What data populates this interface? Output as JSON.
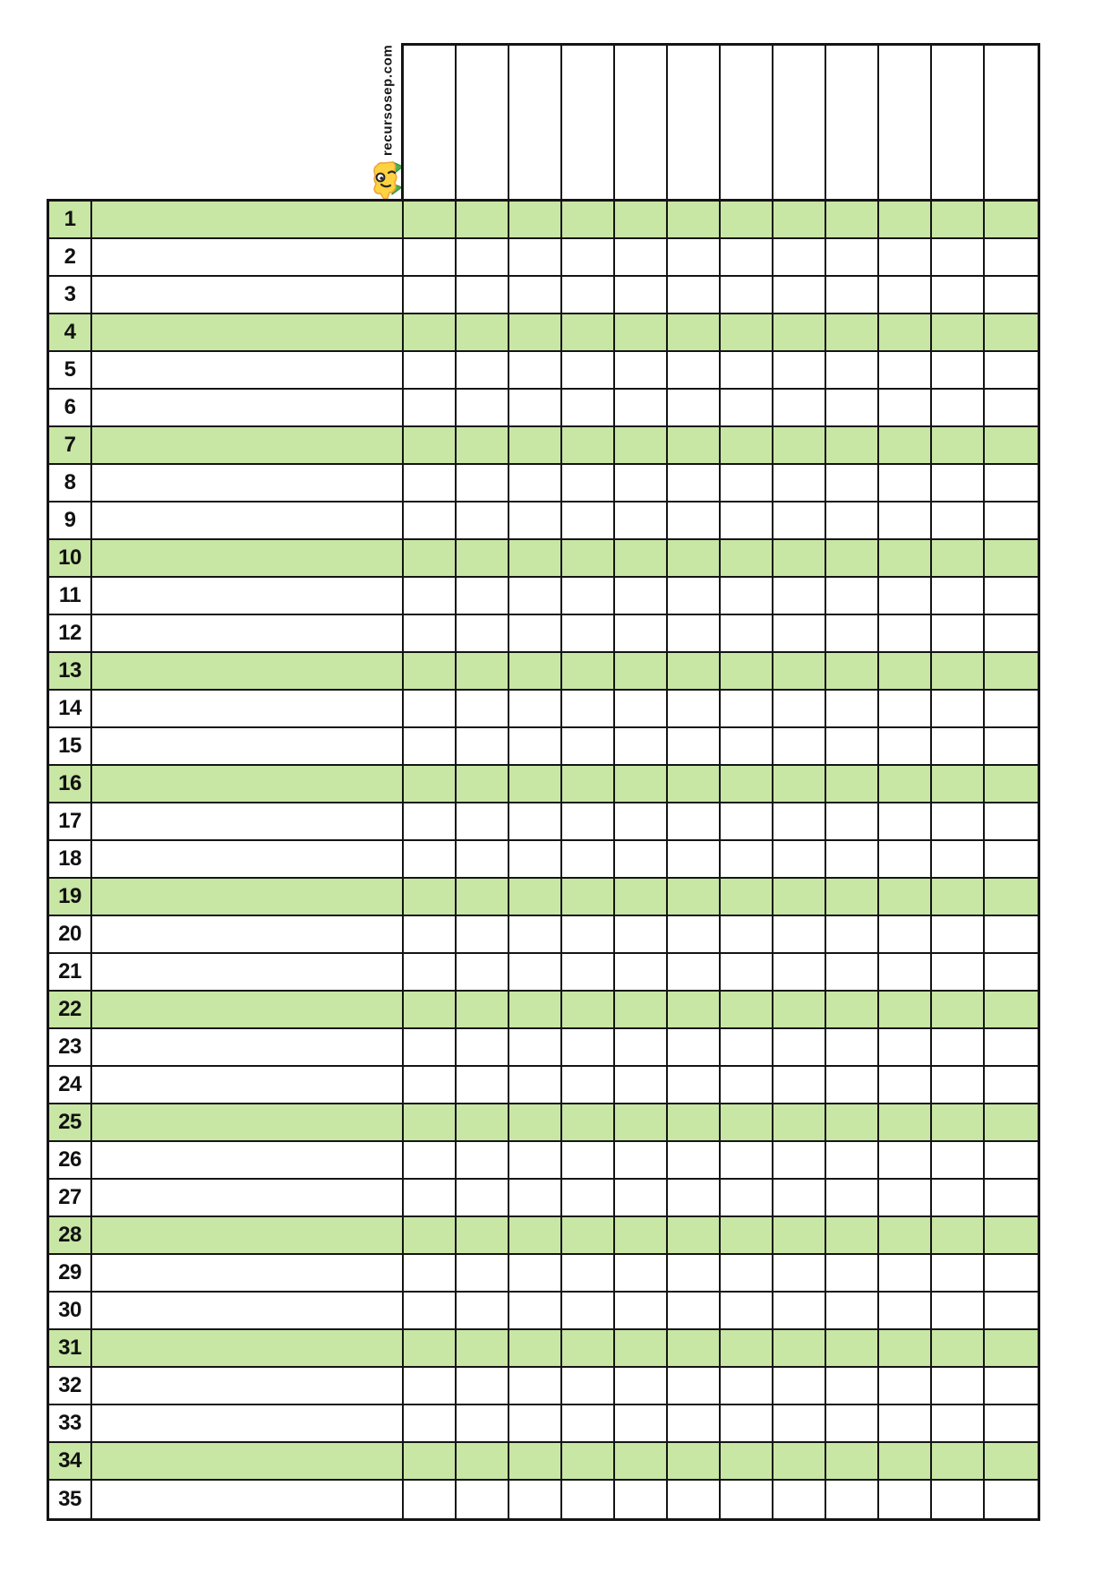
{
  "branding": {
    "website": "recursosep.com",
    "mascot_icon": "pencil-mascot-icon"
  },
  "colors": {
    "row_highlight_green": "#c8e6a4",
    "grid_line": "#141414",
    "page_background": "#ffffff",
    "mascot_yellow": "#ffd23f",
    "mascot_outline": "#eda63a",
    "mascot_green": "#4caf50"
  },
  "table": {
    "header": {
      "column_count": 12
    },
    "rows": [
      {
        "number": "1",
        "highlighted": true
      },
      {
        "number": "2",
        "highlighted": false
      },
      {
        "number": "3",
        "highlighted": false
      },
      {
        "number": "4",
        "highlighted": true
      },
      {
        "number": "5",
        "highlighted": false
      },
      {
        "number": "6",
        "highlighted": false
      },
      {
        "number": "7",
        "highlighted": true
      },
      {
        "number": "8",
        "highlighted": false
      },
      {
        "number": "9",
        "highlighted": false
      },
      {
        "number": "10",
        "highlighted": true
      },
      {
        "number": "11",
        "highlighted": false
      },
      {
        "number": "12",
        "highlighted": false
      },
      {
        "number": "13",
        "highlighted": true
      },
      {
        "number": "14",
        "highlighted": false
      },
      {
        "number": "15",
        "highlighted": false
      },
      {
        "number": "16",
        "highlighted": true
      },
      {
        "number": "17",
        "highlighted": false
      },
      {
        "number": "18",
        "highlighted": false
      },
      {
        "number": "19",
        "highlighted": true
      },
      {
        "number": "20",
        "highlighted": false
      },
      {
        "number": "21",
        "highlighted": false
      },
      {
        "number": "22",
        "highlighted": true
      },
      {
        "number": "23",
        "highlighted": false
      },
      {
        "number": "24",
        "highlighted": false
      },
      {
        "number": "25",
        "highlighted": true
      },
      {
        "number": "26",
        "highlighted": false
      },
      {
        "number": "27",
        "highlighted": false
      },
      {
        "number": "28",
        "highlighted": true
      },
      {
        "number": "29",
        "highlighted": false
      },
      {
        "number": "30",
        "highlighted": false
      },
      {
        "number": "31",
        "highlighted": true
      },
      {
        "number": "32",
        "highlighted": false
      },
      {
        "number": "33",
        "highlighted": false
      },
      {
        "number": "34",
        "highlighted": true
      },
      {
        "number": "35",
        "highlighted": false
      }
    ]
  }
}
